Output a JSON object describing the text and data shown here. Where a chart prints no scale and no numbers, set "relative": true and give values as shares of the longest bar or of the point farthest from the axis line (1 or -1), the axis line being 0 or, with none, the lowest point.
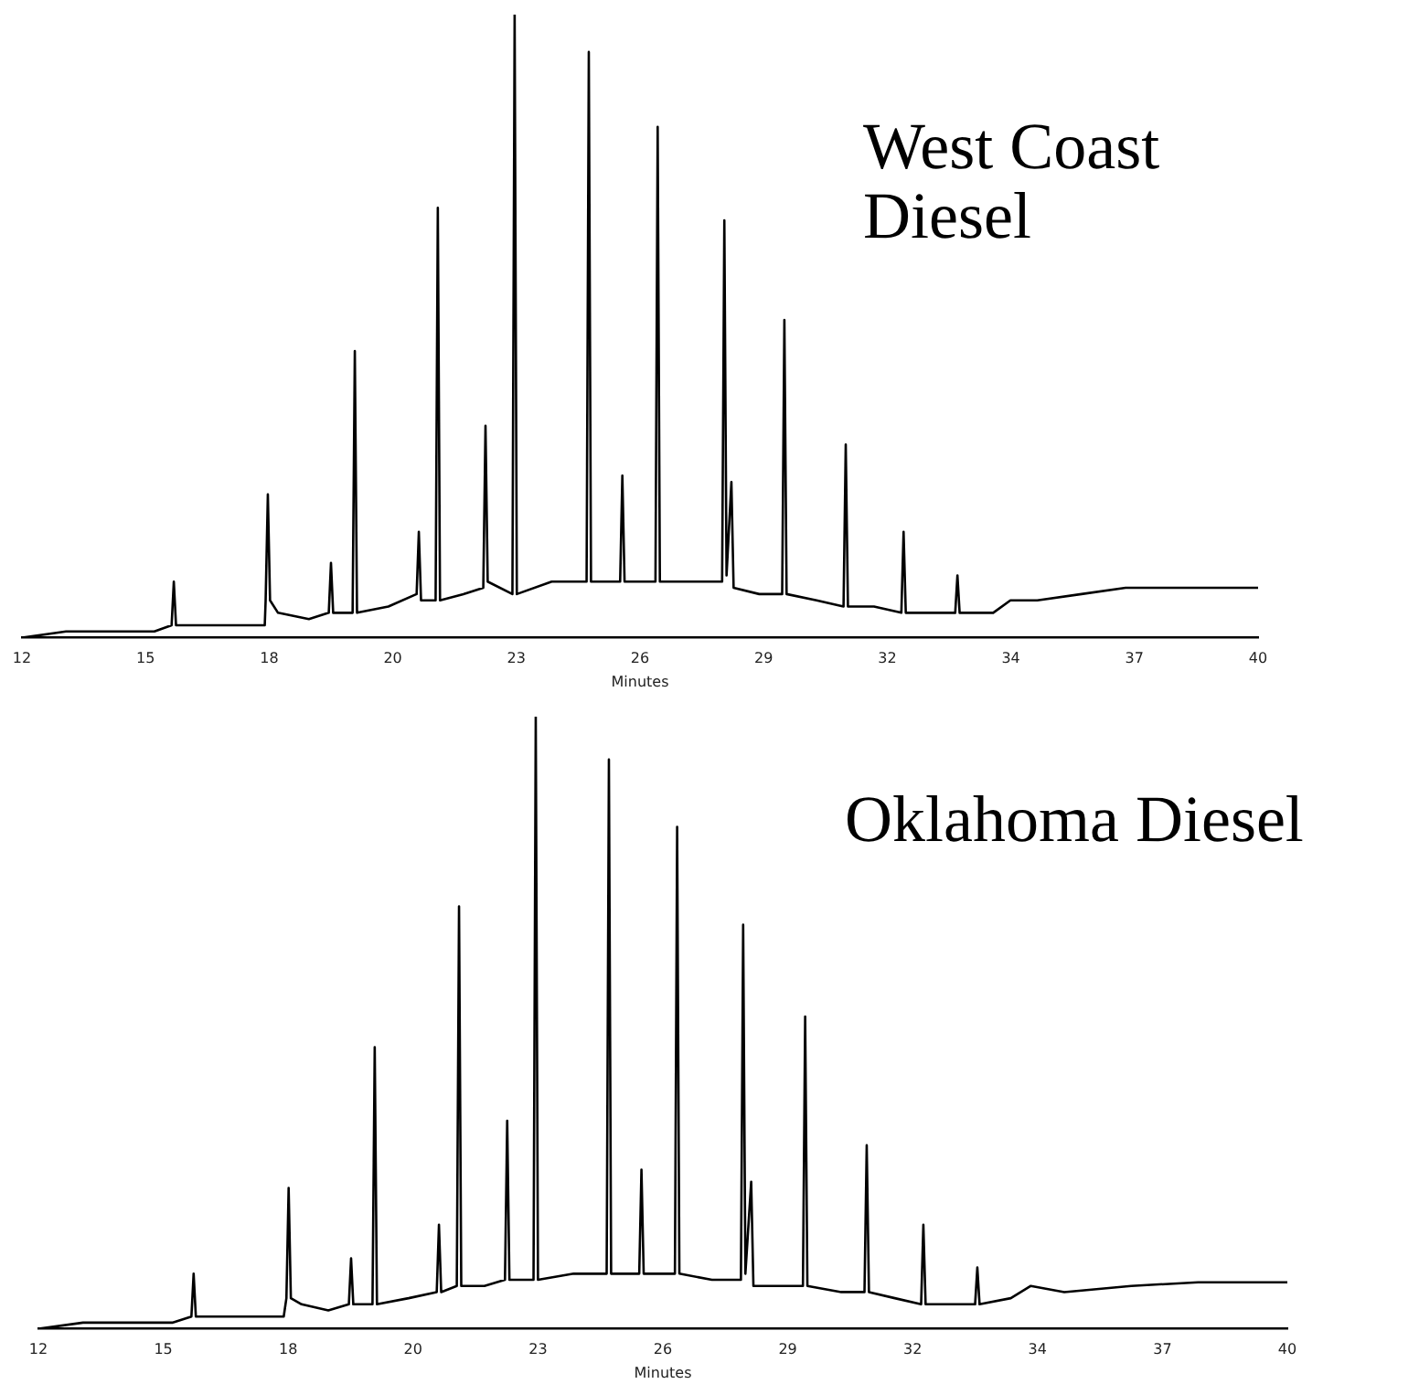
{
  "chart_data": [
    {
      "type": "line",
      "title": "West Coast Diesel",
      "xlabel": "Minutes",
      "relative": true,
      "grid": false,
      "legend": false,
      "marker": "none",
      "line_style": "solid",
      "tick_labels": "x",
      "xlim": [
        12,
        40
      ],
      "xticks": [
        12,
        {
          "value": 14.8,
          "label": "15"
        },
        {
          "value": 17.6,
          "label": "18"
        },
        {
          "value": 20.4,
          "label": "20"
        },
        {
          "value": 23.2,
          "label": "23"
        },
        26,
        {
          "value": 28.8,
          "label": "29"
        },
        {
          "value": 31.6,
          "label": "32"
        },
        {
          "value": 34.4,
          "label": "34"
        },
        {
          "value": 37.2,
          "label": "37"
        },
        40
      ],
      "series": [
        {
          "color": "#000000",
          "x": [
            12,
            13,
            14,
            15,
            15.39,
            15.44,
            15.49,
            16.5,
            17.5,
            17.52,
            17.57,
            17.62,
            17.8,
            18.5,
            18.95,
            19.0,
            19.05,
            19.49,
            19.54,
            19.59,
            20.3,
            20.94,
            20.99,
            21.04,
            21.37,
            21.42,
            21.47,
            22.0,
            22.45,
            22.5,
            22.55,
            23.11,
            23.16,
            23.21,
            24.0,
            24.79,
            24.84,
            24.89,
            25.55,
            25.6,
            25.65,
            26.35,
            26.4,
            26.45,
            27.2,
            27.86,
            27.91,
            27.96,
            28.07,
            28.12,
            28.7,
            29.22,
            29.27,
            29.32,
            30.0,
            30.61,
            30.66,
            30.71,
            31.3,
            31.92,
            31.97,
            32.02,
            32.6,
            33.14,
            33.19,
            33.24,
            34.0,
            34.39,
            35.0,
            36.0,
            37.0,
            38.5,
            40
          ],
          "values": [
            0,
            0.01,
            0.01,
            0.01,
            0.02,
            0.09,
            0.02,
            0.02,
            0.02,
            0.06,
            0.23,
            0.06,
            0.04,
            0.03,
            0.04,
            0.12,
            0.04,
            0.04,
            0.46,
            0.04,
            0.05,
            0.07,
            0.17,
            0.06,
            0.06,
            0.69,
            0.06,
            0.07,
            0.08,
            0.34,
            0.09,
            0.07,
            1,
            0.07,
            0.09,
            0.09,
            0.94,
            0.09,
            0.09,
            0.26,
            0.09,
            0.09,
            0.82,
            0.09,
            0.09,
            0.09,
            0.67,
            0.1,
            0.25,
            0.08,
            0.07,
            0.07,
            0.51,
            0.07,
            0.06,
            0.05,
            0.31,
            0.05,
            0.05,
            0.04,
            0.17,
            0.04,
            0.04,
            0.04,
            0.1,
            0.04,
            0.04,
            0.06,
            0.06,
            0.07,
            0.08,
            0.08,
            0.08
          ]
        }
      ]
    },
    {
      "type": "line",
      "title": "Oklahoma Diesel",
      "xlabel": "Minutes",
      "relative": true,
      "grid": false,
      "legend": false,
      "marker": "none",
      "line_style": "solid",
      "tick_labels": "x",
      "xlim": [
        12,
        40
      ],
      "xticks": [
        12,
        {
          "value": 14.8,
          "label": "15"
        },
        {
          "value": 17.6,
          "label": "18"
        },
        {
          "value": 20.4,
          "label": "20"
        },
        {
          "value": 23.2,
          "label": "23"
        },
        26,
        {
          "value": 28.8,
          "label": "29"
        },
        {
          "value": 31.6,
          "label": "32"
        },
        {
          "value": 34.4,
          "label": "34"
        },
        {
          "value": 37.2,
          "label": "37"
        },
        40
      ],
      "series": [
        {
          "color": "#000000",
          "x": [
            12,
            13,
            14,
            15,
            15.43,
            15.48,
            15.53,
            16.5,
            17.5,
            17.56,
            17.61,
            17.66,
            17.9,
            18.5,
            18.96,
            19.01,
            19.06,
            19.49,
            19.54,
            19.59,
            20.3,
            20.93,
            20.98,
            21.03,
            21.38,
            21.43,
            21.48,
            22.0,
            22.46,
            22.51,
            22.56,
            23.1,
            23.15,
            23.2,
            24.0,
            24.74,
            24.79,
            24.84,
            25.47,
            25.52,
            25.57,
            26.27,
            26.32,
            26.37,
            27.1,
            27.75,
            27.8,
            27.85,
            27.98,
            28.03,
            28.6,
            29.14,
            29.19,
            29.24,
            30.0,
            30.52,
            30.57,
            30.62,
            31.2,
            31.79,
            31.84,
            31.89,
            32.5,
            33.0,
            33.05,
            33.1,
            33.8,
            34.25,
            35.0,
            36.5,
            38.0,
            40
          ],
          "values": [
            0,
            0.01,
            0.01,
            0.01,
            0.02,
            0.09,
            0.02,
            0.02,
            0.02,
            0.05,
            0.23,
            0.05,
            0.04,
            0.03,
            0.04,
            0.115,
            0.04,
            0.04,
            0.46,
            0.04,
            0.05,
            0.06,
            0.17,
            0.06,
            0.07,
            0.69,
            0.07,
            0.07,
            0.08,
            0.34,
            0.08,
            0.08,
            1,
            0.08,
            0.09,
            0.09,
            0.93,
            0.09,
            0.09,
            0.26,
            0.09,
            0.09,
            0.82,
            0.09,
            0.08,
            0.08,
            0.66,
            0.09,
            0.24,
            0.07,
            0.07,
            0.07,
            0.51,
            0.07,
            0.06,
            0.06,
            0.3,
            0.06,
            0.05,
            0.04,
            0.17,
            0.04,
            0.04,
            0.04,
            0.1,
            0.04,
            0.05,
            0.07,
            0.06,
            0.07,
            0.076,
            0.076
          ]
        }
      ]
    }
  ]
}
